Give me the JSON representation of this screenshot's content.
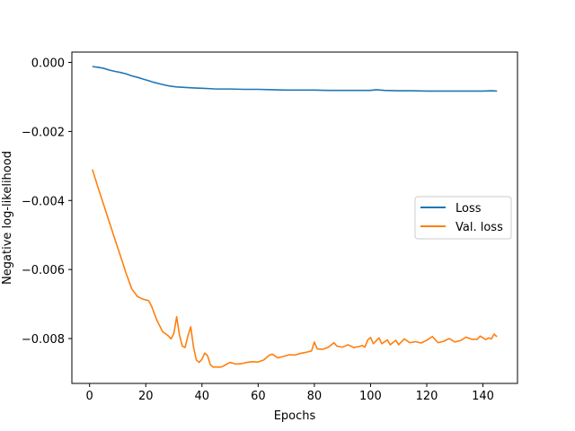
{
  "chart_data": {
    "type": "line",
    "title": "",
    "xlabel": "Epochs",
    "ylabel": "Negative log-likelihood",
    "xlim": [
      -6.3,
      152.3
    ],
    "ylim": [
      -0.0093,
      0.0003
    ],
    "xticks": [
      0,
      20,
      40,
      60,
      80,
      100,
      120,
      140
    ],
    "xtick_labels": [
      "0",
      "20",
      "40",
      "60",
      "80",
      "100",
      "120",
      "140"
    ],
    "yticks": [
      0.0,
      -0.002,
      -0.004,
      -0.006,
      -0.008
    ],
    "ytick_labels": [
      "0.000",
      "−0.002",
      "−0.004",
      "−0.006",
      "−0.008"
    ],
    "grid": false,
    "legend_position": "center-right",
    "series": [
      {
        "name": "Loss",
        "color": "#1f77b4",
        "points": [
          [
            1,
            -0.00012
          ],
          [
            3,
            -0.00014
          ],
          [
            5,
            -0.00017
          ],
          [
            7,
            -0.00022
          ],
          [
            9,
            -0.00026
          ],
          [
            11,
            -0.00029
          ],
          [
            13,
            -0.00033
          ],
          [
            15,
            -0.00039
          ],
          [
            17,
            -0.00043
          ],
          [
            19,
            -0.00048
          ],
          [
            21,
            -0.00053
          ],
          [
            23,
            -0.00058
          ],
          [
            25,
            -0.00062
          ],
          [
            27,
            -0.00066
          ],
          [
            29,
            -0.00069
          ],
          [
            31,
            -0.00071
          ],
          [
            33,
            -0.00072
          ],
          [
            35,
            -0.00073
          ],
          [
            37,
            -0.00074
          ],
          [
            40,
            -0.00075
          ],
          [
            43,
            -0.00076
          ],
          [
            45,
            -0.00077
          ],
          [
            50,
            -0.00077
          ],
          [
            55,
            -0.00078
          ],
          [
            60,
            -0.00078
          ],
          [
            65,
            -0.00079
          ],
          [
            70,
            -0.0008
          ],
          [
            75,
            -0.0008
          ],
          [
            80,
            -0.0008
          ],
          [
            85,
            -0.00081
          ],
          [
            90,
            -0.00081
          ],
          [
            95,
            -0.00081
          ],
          [
            100,
            -0.00081
          ],
          [
            102,
            -0.00079
          ],
          [
            105,
            -0.00081
          ],
          [
            110,
            -0.00082
          ],
          [
            115,
            -0.00082
          ],
          [
            120,
            -0.00083
          ],
          [
            125,
            -0.00083
          ],
          [
            130,
            -0.00083
          ],
          [
            135,
            -0.00083
          ],
          [
            140,
            -0.00083
          ],
          [
            143,
            -0.00082
          ],
          [
            145,
            -0.00083
          ]
        ]
      },
      {
        "name": "Val. loss",
        "color": "#ff7f0e",
        "points": [
          [
            1,
            -0.0031
          ],
          [
            3,
            -0.00362
          ],
          [
            5,
            -0.00412
          ],
          [
            7,
            -0.00462
          ],
          [
            9,
            -0.00512
          ],
          [
            11,
            -0.00561
          ],
          [
            13,
            -0.00611
          ],
          [
            15,
            -0.00656
          ],
          [
            17,
            -0.00678
          ],
          [
            19,
            -0.00686
          ],
          [
            21,
            -0.0069
          ],
          [
            22,
            -0.00705
          ],
          [
            24,
            -0.00748
          ],
          [
            26,
            -0.0078
          ],
          [
            28,
            -0.00792
          ],
          [
            29,
            -0.00801
          ],
          [
            30,
            -0.00785
          ],
          [
            31,
            -0.00737
          ],
          [
            32,
            -0.0079
          ],
          [
            33,
            -0.00822
          ],
          [
            34,
            -0.00826
          ],
          [
            35,
            -0.00792
          ],
          [
            36,
            -0.00766
          ],
          [
            37,
            -0.00825
          ],
          [
            38,
            -0.00862
          ],
          [
            39,
            -0.00869
          ],
          [
            40,
            -0.0086
          ],
          [
            41,
            -0.00842
          ],
          [
            42,
            -0.0085
          ],
          [
            43,
            -0.00876
          ],
          [
            44,
            -0.00883
          ],
          [
            45,
            -0.00882
          ],
          [
            46,
            -0.00883
          ],
          [
            47,
            -0.00882
          ],
          [
            48,
            -0.00878
          ],
          [
            50,
            -0.00869
          ],
          [
            52,
            -0.00874
          ],
          [
            54,
            -0.00873
          ],
          [
            56,
            -0.00869
          ],
          [
            58,
            -0.00867
          ],
          [
            60,
            -0.00868
          ],
          [
            62,
            -0.00862
          ],
          [
            64,
            -0.00848
          ],
          [
            65,
            -0.00845
          ],
          [
            67,
            -0.00856
          ],
          [
            69,
            -0.00852
          ],
          [
            71,
            -0.00847
          ],
          [
            73,
            -0.00848
          ],
          [
            75,
            -0.00843
          ],
          [
            77,
            -0.0084
          ],
          [
            79,
            -0.00836
          ],
          [
            80,
            -0.0081
          ],
          [
            81,
            -0.0083
          ],
          [
            83,
            -0.00831
          ],
          [
            85,
            -0.00825
          ],
          [
            87,
            -0.00812
          ],
          [
            88,
            -0.00822
          ],
          [
            90,
            -0.00825
          ],
          [
            92,
            -0.00818
          ],
          [
            94,
            -0.00826
          ],
          [
            96,
            -0.00823
          ],
          [
            97,
            -0.0082
          ],
          [
            98,
            -0.00825
          ],
          [
            99,
            -0.00804
          ],
          [
            100,
            -0.00797
          ],
          [
            101,
            -0.00815
          ],
          [
            103,
            -0.00798
          ],
          [
            104,
            -0.00815
          ],
          [
            106,
            -0.00804
          ],
          [
            107,
            -0.00818
          ],
          [
            109,
            -0.00805
          ],
          [
            110,
            -0.00818
          ],
          [
            112,
            -0.00801
          ],
          [
            114,
            -0.00812
          ],
          [
            116,
            -0.00809
          ],
          [
            118,
            -0.00813
          ],
          [
            120,
            -0.00805
          ],
          [
            122,
            -0.00794
          ],
          [
            124,
            -0.00812
          ],
          [
            126,
            -0.00808
          ],
          [
            128,
            -0.008
          ],
          [
            130,
            -0.0081
          ],
          [
            132,
            -0.00806
          ],
          [
            134,
            -0.00796
          ],
          [
            136,
            -0.00802
          ],
          [
            138,
            -0.00802
          ],
          [
            139,
            -0.00793
          ],
          [
            141,
            -0.00803
          ],
          [
            142,
            -0.00798
          ],
          [
            143,
            -0.00801
          ],
          [
            144,
            -0.00787
          ],
          [
            145,
            -0.00795
          ]
        ]
      }
    ]
  }
}
